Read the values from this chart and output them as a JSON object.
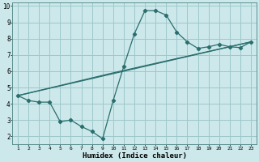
{
  "xlabel": "Humidex (Indice chaleur)",
  "bg_color": "#cce8ea",
  "grid_color": "#9dc8cc",
  "line_color": "#2a6e6e",
  "xlim": [
    0.5,
    23.5
  ],
  "ylim": [
    1.5,
    10.2
  ],
  "xticks": [
    1,
    2,
    3,
    4,
    5,
    6,
    7,
    8,
    9,
    10,
    11,
    12,
    13,
    14,
    15,
    16,
    17,
    18,
    19,
    20,
    21,
    22,
    23
  ],
  "yticks": [
    2,
    3,
    4,
    5,
    6,
    7,
    8,
    9,
    10
  ],
  "line1_x": [
    1,
    2,
    3,
    4,
    5,
    6,
    7,
    8,
    9,
    10,
    11,
    12,
    13,
    14,
    15,
    16,
    17,
    18,
    19,
    20,
    21,
    22,
    23
  ],
  "line1_y": [
    4.5,
    4.2,
    4.1,
    4.1,
    2.9,
    3.0,
    2.6,
    2.3,
    1.85,
    4.2,
    6.3,
    8.3,
    9.72,
    9.72,
    9.45,
    8.4,
    7.8,
    7.4,
    7.5,
    7.65,
    7.5,
    7.45,
    7.8
  ],
  "line2_x": [
    1,
    23
  ],
  "line2_y": [
    4.5,
    7.8
  ],
  "line3_x": [
    1,
    10,
    23
  ],
  "line3_y": [
    4.5,
    5.9,
    7.8
  ]
}
